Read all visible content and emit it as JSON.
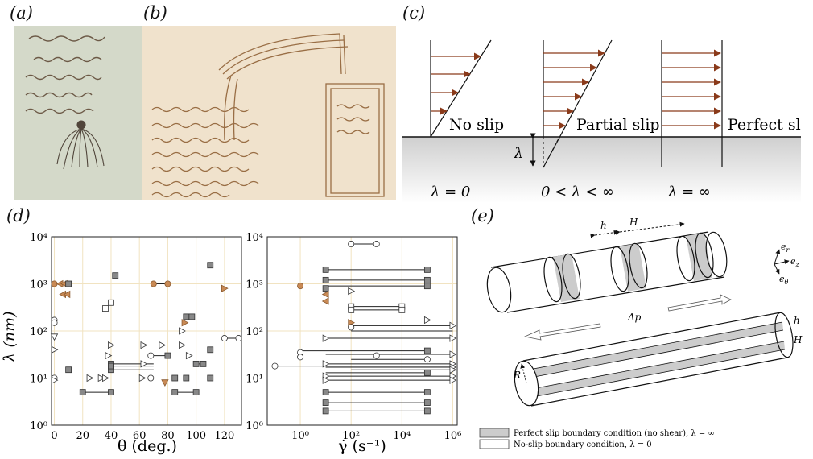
{
  "panels": {
    "a": "(a)",
    "b": "(b)",
    "c": "(c)",
    "d": "(d)",
    "e": "(e)"
  },
  "panel_c": {
    "labels": [
      "No slip",
      "Partial slip",
      "Perfect slip"
    ],
    "conditions": [
      "λ = 0",
      "0 < λ < ∞",
      "λ = ∞"
    ],
    "slip_length_symbol": "λ"
  },
  "panel_e": {
    "h": "h",
    "H": "H",
    "R": "R",
    "dp": "Δp",
    "axes": [
      "e",
      "e",
      "e"
    ],
    "axes_sub": [
      "r",
      "z",
      "θ"
    ],
    "legend": [
      "Perfect slip boundary condition (no shear), λ = ∞",
      "No-slip boundary condition, λ = 0"
    ],
    "colors": {
      "shaded": "#cccccc",
      "unshaded": "#ffffff"
    }
  },
  "chart_data": [
    {
      "type": "scatter",
      "xlabel": "θ (deg.)",
      "ylabel": "λ (nm)",
      "yscale": "log",
      "xlim": [
        -2,
        132
      ],
      "ylim": [
        1,
        10000
      ],
      "xticks": [
        "0",
        "20",
        "40",
        "60",
        "80",
        "100",
        "120"
      ],
      "yticks": [
        "10⁰",
        "10¹",
        "10²",
        "10³",
        "10⁴"
      ],
      "grid": true,
      "colors": {
        "filled": "#888888",
        "orange": "#c98a55",
        "open": "#ffffff",
        "grid": "#f1e3c1"
      },
      "points": [
        {
          "x": 0,
          "y": 1000,
          "m": "circle",
          "c": "orange"
        },
        {
          "x": 4,
          "y": 1000,
          "m": "tri-left",
          "c": "orange"
        },
        {
          "x": 7,
          "y": 1000,
          "m": "tri-left",
          "c": "orange"
        },
        {
          "x": 10,
          "y": 1000,
          "m": "square",
          "c": "filled"
        },
        {
          "x": 6,
          "y": 600,
          "m": "tri-left",
          "c": "orange"
        },
        {
          "x": 9,
          "y": 600,
          "m": "tri-left",
          "c": "orange"
        },
        {
          "x": 0,
          "y": 170,
          "m": "circle",
          "c": "open"
        },
        {
          "x": 0,
          "y": 150,
          "m": "circle",
          "c": "open"
        },
        {
          "x": 0,
          "y": 75,
          "m": "tri-down",
          "c": "open"
        },
        {
          "x": 0,
          "y": 40,
          "m": "tri-right",
          "c": "open"
        },
        {
          "x": 0,
          "y": 10,
          "m": "circle",
          "c": "open"
        },
        {
          "x": 0,
          "y": 9,
          "m": "tri-right",
          "c": "open"
        },
        {
          "x": 10,
          "y": 15,
          "m": "square",
          "c": "filled"
        },
        {
          "x": 20,
          "y": 5,
          "m": "square",
          "c": "filled"
        },
        {
          "x": 40,
          "y": 5,
          "m": "square",
          "c": "filled"
        },
        {
          "x": 25,
          "y": 10,
          "m": "tri-right",
          "c": "open"
        },
        {
          "x": 33,
          "y": 10,
          "m": "tri-right",
          "c": "open"
        },
        {
          "x": 36,
          "y": 10,
          "m": "tri-right",
          "c": "open"
        },
        {
          "x": 38,
          "y": 30,
          "m": "tri-right",
          "c": "open"
        },
        {
          "x": 36,
          "y": 300,
          "m": "square",
          "c": "open"
        },
        {
          "x": 40,
          "y": 400,
          "m": "square",
          "c": "open"
        },
        {
          "x": 43,
          "y": 1500,
          "m": "square",
          "c": "filled"
        },
        {
          "x": 40,
          "y": 50,
          "m": "tri-right",
          "c": "open"
        },
        {
          "x": 40,
          "y": 20,
          "m": "square",
          "c": "filled"
        },
        {
          "x": 40,
          "y": 15,
          "m": "square",
          "c": "filled"
        },
        {
          "x": 40,
          "y": 18,
          "m": "square",
          "c": "filled"
        },
        {
          "x": 63,
          "y": 50,
          "m": "tri-right",
          "c": "open"
        },
        {
          "x": 63,
          "y": 20,
          "m": "tri-right",
          "c": "open"
        },
        {
          "x": 62,
          "y": 10,
          "m": "tri-right",
          "c": "open"
        },
        {
          "x": 68,
          "y": 30,
          "m": "circle",
          "c": "open"
        },
        {
          "x": 68,
          "y": 10,
          "m": "circle",
          "c": "open"
        },
        {
          "x": 70,
          "y": 1000,
          "m": "circle",
          "c": "orange"
        },
        {
          "x": 80,
          "y": 1000,
          "m": "circle",
          "c": "orange"
        },
        {
          "x": 80,
          "y": 30,
          "m": "square",
          "c": "filled"
        },
        {
          "x": 76,
          "y": 50,
          "m": "tri-right",
          "c": "open"
        },
        {
          "x": 78,
          "y": 8,
          "m": "tri-down",
          "c": "orange"
        },
        {
          "x": 85,
          "y": 5,
          "m": "square",
          "c": "filled"
        },
        {
          "x": 100,
          "y": 5,
          "m": "square",
          "c": "filled"
        },
        {
          "x": 85,
          "y": 10,
          "m": "square",
          "c": "filled"
        },
        {
          "x": 93,
          "y": 10,
          "m": "square",
          "c": "filled"
        },
        {
          "x": 90,
          "y": 100,
          "m": "tri-right",
          "c": "open"
        },
        {
          "x": 92,
          "y": 150,
          "m": "tri-right",
          "c": "orange"
        },
        {
          "x": 93,
          "y": 200,
          "m": "square",
          "c": "filled"
        },
        {
          "x": 97,
          "y": 200,
          "m": "square",
          "c": "filled"
        },
        {
          "x": 90,
          "y": 50,
          "m": "tri-right",
          "c": "open"
        },
        {
          "x": 95,
          "y": 30,
          "m": "tri-right",
          "c": "open"
        },
        {
          "x": 100,
          "y": 20,
          "m": "square",
          "c": "filled"
        },
        {
          "x": 105,
          "y": 20,
          "m": "square",
          "c": "filled"
        },
        {
          "x": 110,
          "y": 40,
          "m": "square",
          "c": "filled"
        },
        {
          "x": 110,
          "y": 10,
          "m": "square",
          "c": "filled"
        },
        {
          "x": 110,
          "y": 2500,
          "m": "square",
          "c": "filled"
        },
        {
          "x": 120,
          "y": 800,
          "m": "tri-right",
          "c": "orange"
        },
        {
          "x": 120,
          "y": 70,
          "m": "circle",
          "c": "open"
        },
        {
          "x": 130,
          "y": 70,
          "m": "circle",
          "c": "open"
        }
      ],
      "segments": [
        {
          "x1": 20,
          "x2": 40,
          "y": 5
        },
        {
          "x1": 40,
          "x2": 70,
          "y": 20
        },
        {
          "x1": 40,
          "x2": 70,
          "y": 15
        },
        {
          "x1": 40,
          "x2": 70,
          "y": 18
        },
        {
          "x1": 70,
          "x2": 80,
          "y": 1000
        },
        {
          "x1": 68,
          "x2": 80,
          "y": 30
        },
        {
          "x1": 85,
          "x2": 100,
          "y": 5
        },
        {
          "x1": 85,
          "x2": 93,
          "y": 10
        },
        {
          "x1": 93,
          "x2": 97,
          "y": 200
        },
        {
          "x1": 100,
          "x2": 105,
          "y": 20
        },
        {
          "x1": 120,
          "x2": 130,
          "y": 70
        }
      ]
    },
    {
      "type": "scatter",
      "xlabel": "γ̇ (s⁻¹)",
      "ylabel": "",
      "xscale": "log",
      "yscale": "log",
      "xlim": [
        0.05,
        1500000
      ],
      "ylim": [
        1,
        10000
      ],
      "xticks": [
        "10⁰",
        "10²",
        "10⁴",
        "10⁶"
      ],
      "yticks": [
        "10⁰",
        "10¹",
        "10²",
        "10³",
        "10⁴"
      ],
      "grid": true,
      "points": [
        {
          "x": 100,
          "y": 7000,
          "m": "circle",
          "c": "open"
        },
        {
          "x": 1000,
          "y": 7000,
          "m": "circle",
          "c": "open"
        },
        {
          "x": 1,
          "y": 900,
          "m": "circle",
          "c": "orange"
        },
        {
          "x": 1,
          "y": 35,
          "m": "circle",
          "c": "open"
        },
        {
          "x": 1,
          "y": 28,
          "m": "circle",
          "c": "open"
        },
        {
          "x": 0.1,
          "y": 18,
          "m": "circle",
          "c": "open"
        },
        {
          "x": 10,
          "y": 800,
          "m": "square",
          "c": "filled"
        },
        {
          "x": 10,
          "y": 600,
          "m": "tri-left",
          "c": "orange"
        },
        {
          "x": 10,
          "y": 430,
          "m": "tri-left",
          "c": "orange"
        },
        {
          "x": 100,
          "y": 700,
          "m": "tri-right",
          "c": "open"
        },
        {
          "x": 100,
          "y": 150,
          "m": "tri-right",
          "c": "orange"
        },
        {
          "x": 100,
          "y": 120,
          "m": "circle",
          "c": "open"
        },
        {
          "x": 1000,
          "y": 30,
          "m": "circle",
          "c": "open"
        }
      ],
      "segments": [
        {
          "x1": 100,
          "x2": 1000,
          "y": 7000
        },
        {
          "x1": 10,
          "x2": 100000,
          "y": 2000
        },
        {
          "x1": 10,
          "x2": 100000,
          "y": 1200
        },
        {
          "x1": 10,
          "x2": 100000,
          "y": 900
        },
        {
          "x1": 100,
          "x2": 10000,
          "y": 330
        },
        {
          "x1": 100,
          "x2": 10000,
          "y": 280
        },
        {
          "x1": 0.5,
          "x2": 100000,
          "y": 170
        },
        {
          "x1": 100,
          "x2": 1000000,
          "y": 130
        },
        {
          "x1": 100,
          "x2": 1000000,
          "y": 100
        },
        {
          "x1": 10,
          "x2": 1000000,
          "y": 70
        },
        {
          "x1": 1,
          "x2": 100000,
          "y": 38
        },
        {
          "x1": 10,
          "x2": 1000000,
          "y": 32
        },
        {
          "x1": 100,
          "x2": 100000,
          "y": 25
        },
        {
          "x1": 10,
          "x2": 1000000,
          "y": 20
        },
        {
          "x1": 10,
          "x2": 1000000,
          "y": 17
        },
        {
          "x1": 100,
          "x2": 1000000,
          "y": 15
        },
        {
          "x1": 10,
          "x2": 100000,
          "y": 13
        },
        {
          "x1": 10,
          "x2": 1000000,
          "y": 11
        },
        {
          "x1": 0.1,
          "x2": 1000000,
          "y": 18
        },
        {
          "x1": 10,
          "x2": 1000000,
          "y": 9
        },
        {
          "x1": 10,
          "x2": 100000,
          "y": 5
        },
        {
          "x1": 10,
          "x2": 100000,
          "y": 3
        },
        {
          "x1": 10,
          "x2": 100000,
          "y": 2
        }
      ],
      "ends": [
        {
          "x": 100000,
          "y": 2000,
          "m": "square",
          "c": "filled"
        },
        {
          "x": 100000,
          "y": 1200,
          "m": "square",
          "c": "filled"
        },
        {
          "x": 100000,
          "y": 900,
          "m": "square",
          "c": "filled"
        },
        {
          "x": 10000,
          "y": 330,
          "m": "square",
          "c": "open"
        },
        {
          "x": 10000,
          "y": 280,
          "m": "square",
          "c": "open"
        },
        {
          "x": 100000,
          "y": 170,
          "m": "tri-right",
          "c": "open"
        },
        {
          "x": 1000000,
          "y": 130,
          "m": "tri-right",
          "c": "open"
        },
        {
          "x": 1000000,
          "y": 70,
          "m": "tri-right",
          "c": "open"
        },
        {
          "x": 100000,
          "y": 38,
          "m": "square",
          "c": "filled"
        },
        {
          "x": 1000000,
          "y": 32,
          "m": "tri-right",
          "c": "open"
        },
        {
          "x": 100000,
          "y": 25,
          "m": "circle",
          "c": "open"
        },
        {
          "x": 1000000,
          "y": 20,
          "m": "tri-right",
          "c": "open"
        },
        {
          "x": 1000000,
          "y": 17,
          "m": "tri-right",
          "c": "open"
        },
        {
          "x": 1000000,
          "y": 15,
          "m": "tri-right",
          "c": "open"
        },
        {
          "x": 100000,
          "y": 13,
          "m": "square",
          "c": "filled"
        },
        {
          "x": 1000000,
          "y": 11,
          "m": "tri-right",
          "c": "open"
        },
        {
          "x": 1000000,
          "y": 9,
          "m": "tri-right",
          "c": "open"
        },
        {
          "x": 100000,
          "y": 5,
          "m": "square",
          "c": "filled"
        },
        {
          "x": 100000,
          "y": 3,
          "m": "square",
          "c": "filled"
        },
        {
          "x": 100000,
          "y": 2,
          "m": "square",
          "c": "filled"
        },
        {
          "x": 10,
          "y": 2000,
          "m": "square",
          "c": "filled"
        },
        {
          "x": 10,
          "y": 1200,
          "m": "square",
          "c": "filled"
        },
        {
          "x": 10,
          "y": 70,
          "m": "tri-right",
          "c": "open"
        },
        {
          "x": 10,
          "y": 20,
          "m": "tri-right",
          "c": "open"
        },
        {
          "x": 10,
          "y": 11,
          "m": "tri-right",
          "c": "open"
        },
        {
          "x": 10,
          "y": 9,
          "m": "tri-right",
          "c": "open"
        },
        {
          "x": 10,
          "y": 5,
          "m": "square",
          "c": "filled"
        },
        {
          "x": 10,
          "y": 3,
          "m": "square",
          "c": "filled"
        },
        {
          "x": 10,
          "y": 2,
          "m": "square",
          "c": "filled"
        },
        {
          "x": 100,
          "y": 330,
          "m": "square",
          "c": "open"
        },
        {
          "x": 100,
          "y": 280,
          "m": "square",
          "c": "open"
        }
      ]
    }
  ]
}
